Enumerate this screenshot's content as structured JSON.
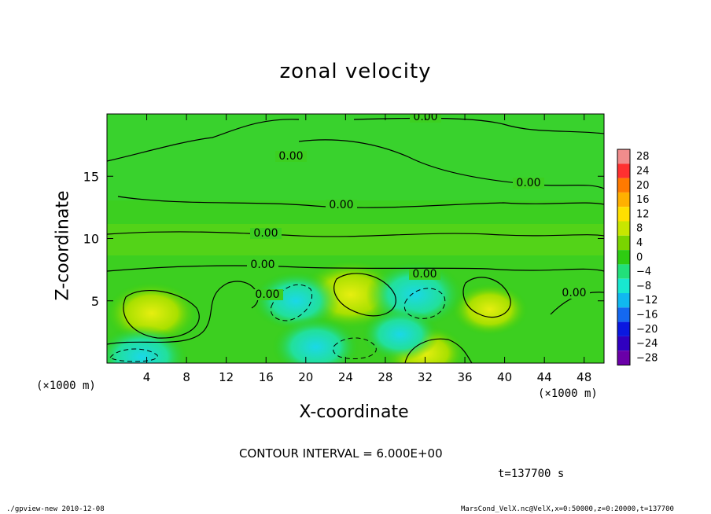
{
  "chart_data": {
    "type": "heatmap",
    "title": "zonal velocity",
    "xlabel": "X-coordinate",
    "ylabel": "Z-coordinate",
    "x_unit_label": "(×1000 m)",
    "x_ticks": [
      4,
      8,
      12,
      16,
      20,
      24,
      28,
      32,
      36,
      40,
      44,
      48
    ],
    "y_ticks": [
      5,
      10,
      15
    ],
    "xlim": [
      0,
      50
    ],
    "ylim": [
      0,
      20
    ],
    "contour_labels": [
      "0.00",
      "0.00",
      "0.00",
      "0.00",
      "0.00",
      "0.00",
      "0.00",
      "0.00",
      "0.00"
    ],
    "contour_interval_text": "CONTOUR INTERVAL = 6.000E+00",
    "time_text": "t=137700 s",
    "colorbar": {
      "levels": [
        28,
        24,
        20,
        16,
        12,
        8,
        4,
        0,
        -4,
        -8,
        -12,
        -16,
        -20,
        -24,
        -28
      ],
      "colors": [
        "#f08c8c",
        "#ff3030",
        "#ff7a00",
        "#ffb000",
        "#ffe000",
        "#c8e600",
        "#7ad400",
        "#2ecc12",
        "#22e07a",
        "#18e8d0",
        "#10b8f0",
        "#1468f0",
        "#0a18e0",
        "#3000c0",
        "#6a00a8"
      ]
    },
    "anomalies": [
      {
        "x": 4.5,
        "z": 4.0,
        "value": 8,
        "sign": "positive"
      },
      {
        "x": 24.5,
        "z": 5.5,
        "value": 10,
        "sign": "positive"
      },
      {
        "x": 32,
        "z": 0.8,
        "value": 6,
        "sign": "positive"
      },
      {
        "x": 38.5,
        "z": 4.3,
        "value": 5,
        "sign": "positive"
      },
      {
        "x": 19,
        "z": 5.0,
        "value": -7,
        "sign": "negative"
      },
      {
        "x": 31,
        "z": 5.5,
        "value": -9,
        "sign": "negative"
      },
      {
        "x": 3.5,
        "z": 0.5,
        "value": -8,
        "sign": "negative"
      },
      {
        "x": 21,
        "z": 1.3,
        "value": -7,
        "sign": "negative"
      },
      {
        "x": 29.5,
        "z": 2.3,
        "value": -5,
        "sign": "negative"
      }
    ]
  },
  "footer": {
    "left": "./gpview-new  2010-12-08",
    "right": "MarsCond_VelX.nc@VelX,x=0:50000,z=0:20000,t=137700"
  }
}
